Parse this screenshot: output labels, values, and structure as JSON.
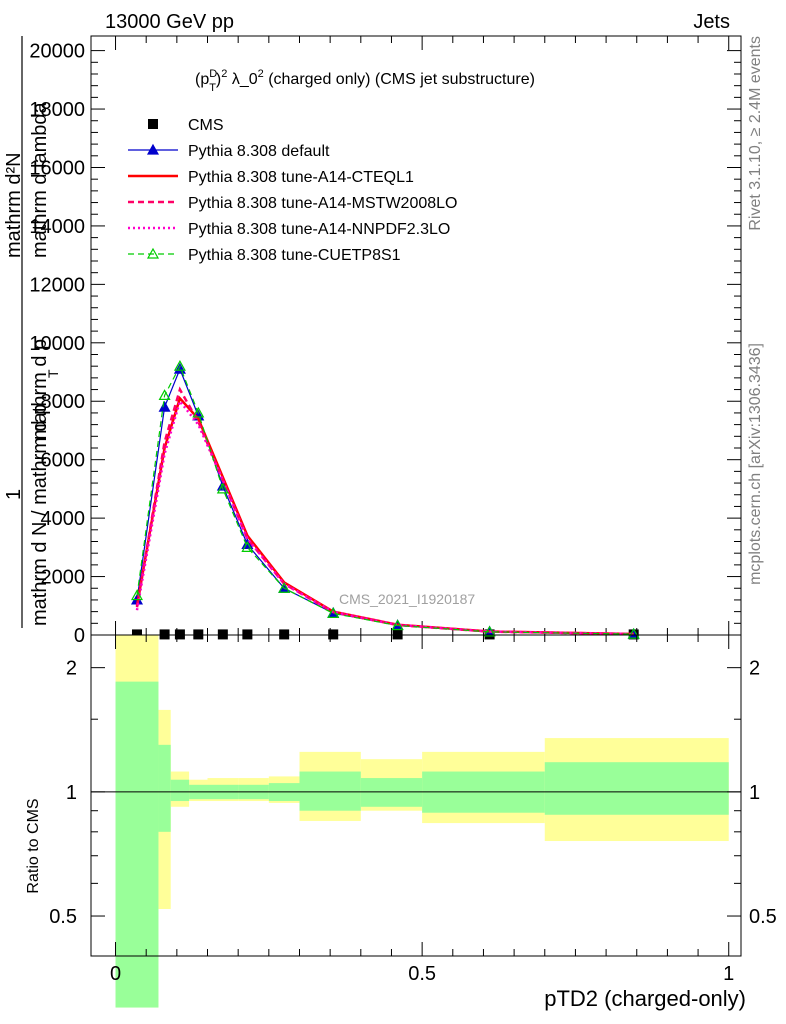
{
  "header": {
    "energy": "13000 GeV pp",
    "category": "Jets"
  },
  "side_labels": {
    "rivet": "Rivet 3.1.10, ≥ 2.4M events",
    "mcplots": "mcplots.cern.ch [arXiv:1306.3436]"
  },
  "watermark": "CMS_2021_I1920187",
  "colors": {
    "cms": "#000000",
    "default": "#0000cc",
    "a14_cteql1": "#ff0000",
    "a14_mstw": "#ff0066",
    "a14_nnpdf": "#ff00cc",
    "cuetp8s1": "#00cc00",
    "band_inner": "#99ff99",
    "band_outer": "#ffff99"
  },
  "chart_data": [
    {
      "type": "line",
      "title": "(p_T^D)^2 λ_0^2 (charged only) (CMS jet substructure)",
      "title_parts": {
        "open": "(p",
        "sup_D": "D",
        "sub_T": "T",
        "close": ")",
        "sup_2": "2",
        "mid": " λ_0",
        "sup_2b": "2",
        "tail": " (charged only) (CMS jet substructure)"
      },
      "ylabel_parts": {
        "one": "1",
        "frac_mid": "mathrm d p",
        "frac_sub": "T",
        "frac_tail": "mathrm d lambda",
        "lower": "mathrm d N / mathrm d p",
        "lower_sub": "T",
        "upper": "mathrm d²N"
      },
      "ylabel_top": "mathrm d²N",
      "ylabel_bottom": "mathrm d N / mathrm d p_T mathrm d lambda",
      "xlim": [
        -0.04,
        1.02
      ],
      "ylim": [
        0,
        20500
      ],
      "yticks": [
        0,
        2000,
        4000,
        6000,
        8000,
        10000,
        12000,
        14000,
        16000,
        18000,
        20000
      ],
      "ytick_labels": [
        "0",
        "2000",
        "4000",
        "6000",
        "8000",
        "10000",
        "12000",
        "14000",
        "16000",
        "18000",
        "20000"
      ],
      "bin_edges": [
        0,
        0.07,
        0.09,
        0.12,
        0.15,
        0.2,
        0.25,
        0.3,
        0.4,
        0.5,
        0.7,
        1.0
      ],
      "x": [
        0.035,
        0.08,
        0.105,
        0.135,
        0.175,
        0.215,
        0.275,
        0.355,
        0.46,
        0.61,
        0.845
      ],
      "series": [
        {
          "name": "CMS",
          "key": "cms",
          "style": "marker-square",
          "values": [
            20,
            20,
            20,
            20,
            20,
            20,
            20,
            20,
            20,
            20,
            20
          ]
        },
        {
          "name": "Pythia 8.308 default",
          "key": "default",
          "style": "solid-triangle",
          "values": [
            1200,
            7800,
            9100,
            7500,
            5100,
            3100,
            1600,
            750,
            330,
            110,
            30
          ]
        },
        {
          "name": "Pythia 8.308 tune-A14-CTEQL1",
          "key": "a14_cteql1",
          "style": "solid-thick",
          "values": [
            1000,
            6400,
            8100,
            7400,
            5400,
            3400,
            1800,
            800,
            350,
            120,
            35
          ]
        },
        {
          "name": "Pythia 8.308 tune-A14-MSTW2008LO",
          "key": "a14_mstw",
          "style": "dashed",
          "values": [
            950,
            6600,
            8400,
            7300,
            5300,
            3300,
            1750,
            780,
            340,
            115,
            33
          ]
        },
        {
          "name": "Pythia 8.308 tune-A14-NNPDF2.3LO",
          "key": "a14_nnpdf",
          "style": "dotted",
          "values": [
            850,
            6200,
            8000,
            7200,
            5300,
            3300,
            1750,
            790,
            345,
            118,
            34
          ]
        },
        {
          "name": "Pythia 8.308 tune-CUETP8S1",
          "key": "cuetp8s1",
          "style": "dashed-open-triangle",
          "values": [
            1350,
            8200,
            9200,
            7600,
            5000,
            3000,
            1600,
            740,
            325,
            108,
            30
          ]
        }
      ]
    },
    {
      "type": "area",
      "ylabel": "Ratio to CMS",
      "xlabel": "pTD2 (charged-only)",
      "xticks": [
        0,
        0.5,
        1
      ],
      "xtick_labels": [
        "0",
        "0.5",
        "1"
      ],
      "ylim": [
        0.4,
        2.4
      ],
      "yticks": [
        0.5,
        1,
        2
      ],
      "ytick_labels": [
        "0.5",
        "1",
        "2"
      ],
      "reference": 1,
      "bin_edges": [
        0,
        0.07,
        0.09,
        0.12,
        0.15,
        0.2,
        0.25,
        0.3,
        0.4,
        0.5,
        0.7,
        1.0
      ],
      "inner_band": [
        [
          0.3,
          1.85
        ],
        [
          0.8,
          1.3
        ],
        [
          0.95,
          1.07
        ],
        [
          0.96,
          1.04
        ],
        [
          0.96,
          1.04
        ],
        [
          0.96,
          1.04
        ],
        [
          0.95,
          1.05
        ],
        [
          0.9,
          1.12
        ],
        [
          0.92,
          1.08
        ],
        [
          0.89,
          1.12
        ],
        [
          0.88,
          1.18
        ]
      ],
      "outer_band": [
        [
          0.3,
          2.4
        ],
        [
          0.52,
          1.58
        ],
        [
          0.92,
          1.12
        ],
        [
          0.95,
          1.07
        ],
        [
          0.95,
          1.08
        ],
        [
          0.95,
          1.08
        ],
        [
          0.94,
          1.09
        ],
        [
          0.85,
          1.25
        ],
        [
          0.9,
          1.2
        ],
        [
          0.84,
          1.25
        ],
        [
          0.76,
          1.35
        ]
      ]
    }
  ]
}
